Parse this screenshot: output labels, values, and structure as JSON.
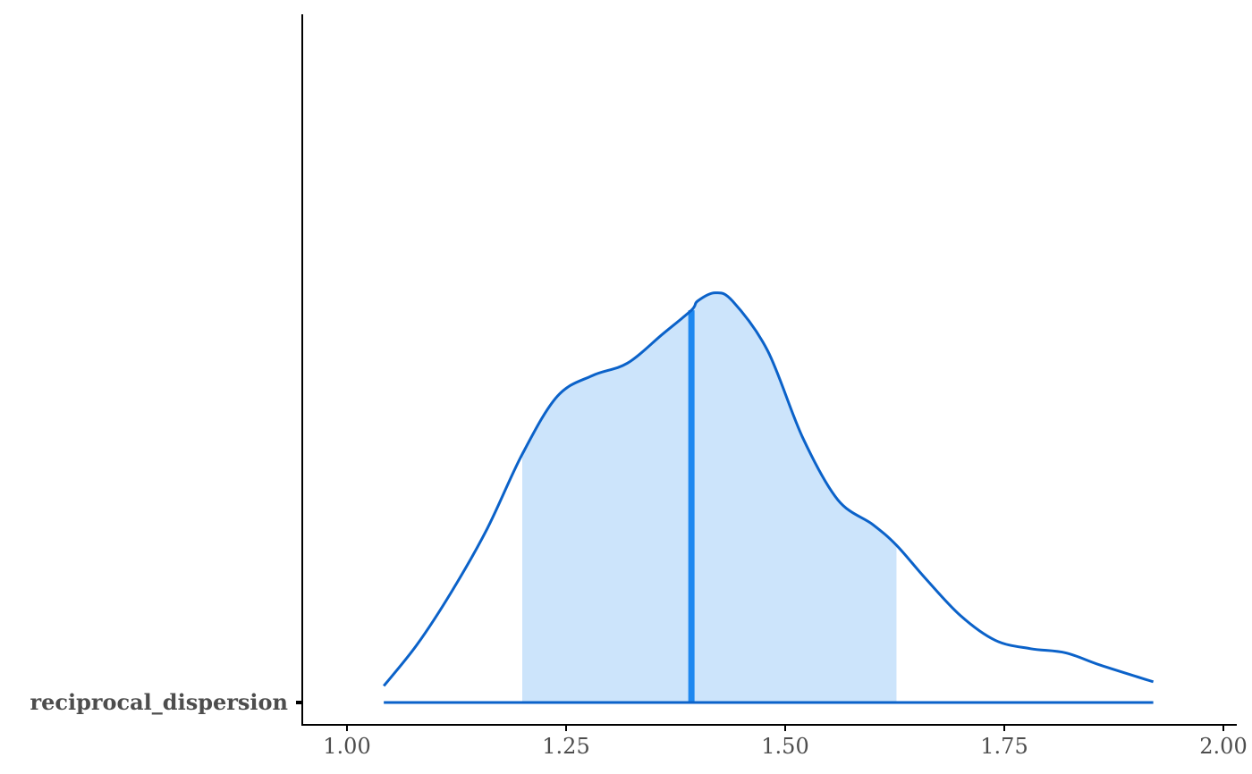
{
  "chart_data": {
    "type": "area",
    "title": "",
    "xlabel": "",
    "ylabel": "",
    "parameter": "reciprocal_dispersion",
    "xlim": [
      0.9,
      2.0
    ],
    "x_ticks": [
      1.0,
      1.25,
      1.5,
      1.75,
      2.0
    ],
    "x_tick_labels": [
      "1.00",
      "1.25",
      "1.50",
      "1.75",
      "2.00"
    ],
    "grid": false,
    "legend": "none",
    "median": 1.393,
    "interval": [
      1.2,
      1.627
    ],
    "range": [
      1.042,
      1.92
    ],
    "density": {
      "x": [
        1.042,
        1.08,
        1.12,
        1.16,
        1.2,
        1.24,
        1.28,
        1.32,
        1.36,
        1.393,
        1.4,
        1.42,
        1.44,
        1.48,
        1.52,
        1.56,
        1.6,
        1.627,
        1.66,
        1.7,
        1.74,
        1.78,
        1.82,
        1.86,
        1.92
      ],
      "y": [
        0.04,
        0.14,
        0.27,
        0.42,
        0.6,
        0.74,
        0.79,
        0.82,
        0.89,
        0.948,
        0.97,
        0.99,
        0.97,
        0.85,
        0.64,
        0.49,
        0.43,
        0.38,
        0.3,
        0.21,
        0.15,
        0.13,
        0.12,
        0.09,
        0.05
      ]
    },
    "colors": {
      "line": "#0b62c9",
      "fill": "#cce4fb",
      "median": "#1e88f0",
      "axis": "#000000",
      "text": "#4d4d4d"
    }
  }
}
